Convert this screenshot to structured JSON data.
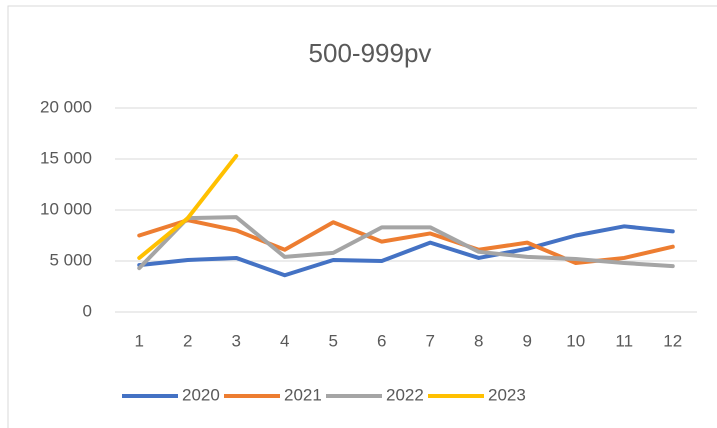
{
  "chart_data": {
    "type": "line",
    "title": "500-999pv",
    "categories": [
      "1",
      "2",
      "3",
      "4",
      "5",
      "6",
      "7",
      "8",
      "9",
      "10",
      "11",
      "12"
    ],
    "series": [
      {
        "name": "2020",
        "color": "#4472c4",
        "values": [
          4600,
          5100,
          5300,
          3600,
          5100,
          5000,
          6800,
          5300,
          6200,
          7500,
          8400,
          7900
        ]
      },
      {
        "name": "2021",
        "color": "#ed7d31",
        "values": [
          7500,
          9000,
          8000,
          6100,
          8800,
          6900,
          7700,
          6100,
          6800,
          4800,
          5300,
          6400
        ]
      },
      {
        "name": "2022",
        "color": "#a5a5a5",
        "values": [
          4300,
          9200,
          9300,
          5400,
          5800,
          8300,
          8300,
          5900,
          5400,
          5200,
          4800,
          4500
        ]
      },
      {
        "name": "2023",
        "color": "#ffc000",
        "values": [
          5300,
          9200,
          15300,
          null,
          null,
          null,
          null,
          null,
          null,
          null,
          null,
          null
        ]
      }
    ],
    "ylim": [
      0,
      20000
    ],
    "yticks": [
      {
        "value": 0,
        "label": "0"
      },
      {
        "value": 5000,
        "label": "5 000"
      },
      {
        "value": 10000,
        "label": "10 000"
      },
      {
        "value": 15000,
        "label": "15 000"
      },
      {
        "value": 20000,
        "label": "20 000"
      }
    ],
    "grid": true,
    "legend": "bottom"
  }
}
